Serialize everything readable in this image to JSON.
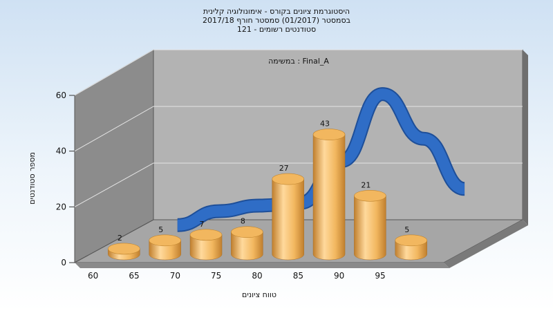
{
  "title_lines": [
    "היסטוגרמת ציונים בקורס - אימונולוגיה קלינית",
    "בסמסטר  (01/2017)  סמסטר חורף 2017/18",
    "סטודנטים רשומים - 121"
  ],
  "chart_data": {
    "type": "bar",
    "categories": [
      "60",
      "65",
      "70",
      "75",
      "80",
      "85",
      "90",
      "95"
    ],
    "x_tick_labels": [
      "60",
      "65",
      "70",
      "75",
      "80",
      "85",
      "90",
      "95"
    ],
    "series": [
      {
        "values": [
          2,
          5,
          7,
          8,
          27,
          43,
          21,
          5
        ]
      }
    ],
    "overlay_curve": {
      "type": "line",
      "x": [
        65,
        70,
        75,
        80,
        85,
        90,
        95,
        100
      ],
      "y": [
        5,
        10,
        12,
        13,
        28,
        52,
        36,
        18
      ]
    },
    "xlabel": "טווח ציונים",
    "ylabel": "מספר סטודנטים",
    "annotation": "במשימה : Final_A",
    "ylim": [
      0,
      60
    ],
    "y_ticks": [
      "0",
      "20",
      "40",
      "60"
    ],
    "y_tick_values": [
      0,
      20,
      40,
      60
    ],
    "grid": true,
    "three_d": true,
    "colors": {
      "bar": "#f2b75f",
      "bar_dark": "#c07f2e",
      "bar_light": "#ffd99c",
      "curve": "#2f6dc6",
      "back_wall": "#b3b3b3",
      "side_wall": "#8c8c8c",
      "floor": "#a6a6a6"
    }
  }
}
